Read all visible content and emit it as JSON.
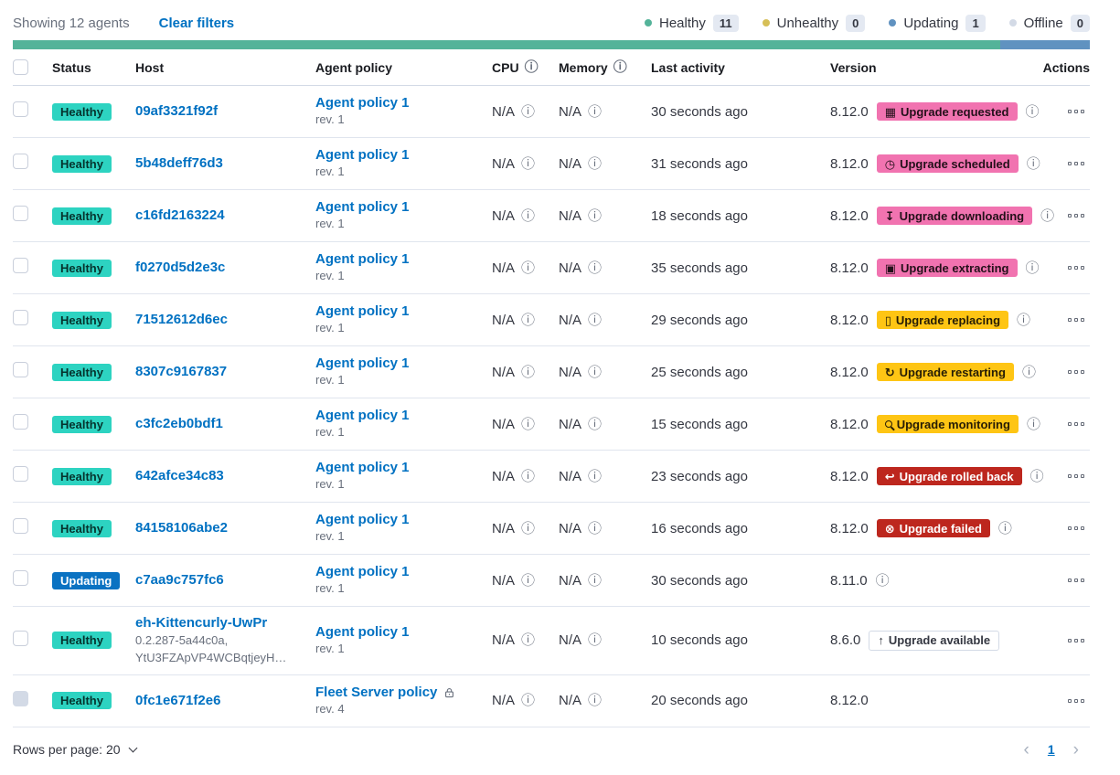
{
  "colors": {
    "healthy_badge": "#2dd3c1",
    "updating_badge": "#0a72c2",
    "accent_badge": "#f173b0",
    "warning_badge": "#fec514",
    "danger_badge": "#bd271e",
    "bar_green": "#54b399",
    "bar_blue": "#6092c0",
    "link": "#0071c2"
  },
  "toolbar": {
    "showing": "Showing 12 agents",
    "clear_filters": "Clear filters"
  },
  "legend": {
    "items": [
      {
        "label": "Healthy",
        "count": "11",
        "color": "#54b399"
      },
      {
        "label": "Unhealthy",
        "count": "0",
        "color": "#d6bf57"
      },
      {
        "label": "Updating",
        "count": "1",
        "color": "#6092c0"
      },
      {
        "label": "Offline",
        "count": "0",
        "color": "#d3dae6"
      }
    ]
  },
  "health_bar": {
    "segments": [
      {
        "color": "#54b399",
        "weight": 11
      },
      {
        "color": "#6092c0",
        "weight": 1
      }
    ]
  },
  "table": {
    "headers": {
      "status": "Status",
      "host": "Host",
      "policy": "Agent policy",
      "cpu": "CPU",
      "memory": "Memory",
      "last_activity": "Last activity",
      "version": "Version",
      "actions": "Actions"
    },
    "rows": [
      {
        "status": "Healthy",
        "status_type": "healthy",
        "host": "09af3321f92f",
        "host_sub": [],
        "policy": "Agent policy 1",
        "policy_rev": "rev. 1",
        "policy_locked": false,
        "cpu": "N/A",
        "memory": "N/A",
        "last_activity": "30 seconds ago",
        "version": "8.12.0",
        "upgrade": {
          "label": "Upgrade requested",
          "icon": "calendar",
          "type": "accent"
        },
        "version_info": true,
        "checkbox_disabled": false
      },
      {
        "status": "Healthy",
        "status_type": "healthy",
        "host": "5b48deff76d3",
        "host_sub": [],
        "policy": "Agent policy 1",
        "policy_rev": "rev. 1",
        "policy_locked": false,
        "cpu": "N/A",
        "memory": "N/A",
        "last_activity": "31 seconds ago",
        "version": "8.12.0",
        "upgrade": {
          "label": "Upgrade scheduled",
          "icon": "clock",
          "type": "accent"
        },
        "version_info": true,
        "checkbox_disabled": false
      },
      {
        "status": "Healthy",
        "status_type": "healthy",
        "host": "c16fd2163224",
        "host_sub": [],
        "policy": "Agent policy 1",
        "policy_rev": "rev. 1",
        "policy_locked": false,
        "cpu": "N/A",
        "memory": "N/A",
        "last_activity": "18 seconds ago",
        "version": "8.12.0",
        "upgrade": {
          "label": "Upgrade downloading",
          "icon": "download",
          "type": "accent"
        },
        "version_info": true,
        "checkbox_disabled": false
      },
      {
        "status": "Healthy",
        "status_type": "healthy",
        "host": "f0270d5d2e3c",
        "host_sub": [],
        "policy": "Agent policy 1",
        "policy_rev": "rev. 1",
        "policy_locked": false,
        "cpu": "N/A",
        "memory": "N/A",
        "last_activity": "35 seconds ago",
        "version": "8.12.0",
        "upgrade": {
          "label": "Upgrade extracting",
          "icon": "package",
          "type": "accent"
        },
        "version_info": true,
        "checkbox_disabled": false
      },
      {
        "status": "Healthy",
        "status_type": "healthy",
        "host": "71512612d6ec",
        "host_sub": [],
        "policy": "Agent policy 1",
        "policy_rev": "rev. 1",
        "policy_locked": false,
        "cpu": "N/A",
        "memory": "N/A",
        "last_activity": "29 seconds ago",
        "version": "8.12.0",
        "upgrade": {
          "label": "Upgrade replacing",
          "icon": "document",
          "type": "warning"
        },
        "version_info": true,
        "checkbox_disabled": false
      },
      {
        "status": "Healthy",
        "status_type": "healthy",
        "host": "8307c9167837",
        "host_sub": [],
        "policy": "Agent policy 1",
        "policy_rev": "rev. 1",
        "policy_locked": false,
        "cpu": "N/A",
        "memory": "N/A",
        "last_activity": "25 seconds ago",
        "version": "8.12.0",
        "upgrade": {
          "label": "Upgrade restarting",
          "icon": "refresh",
          "type": "warning"
        },
        "version_info": true,
        "checkbox_disabled": false
      },
      {
        "status": "Healthy",
        "status_type": "healthy",
        "host": "c3fc2eb0bdf1",
        "host_sub": [],
        "policy": "Agent policy 1",
        "policy_rev": "rev. 1",
        "policy_locked": false,
        "cpu": "N/A",
        "memory": "N/A",
        "last_activity": "15 seconds ago",
        "version": "8.12.0",
        "upgrade": {
          "label": "Upgrade monitoring",
          "icon": "inspect",
          "type": "warning"
        },
        "version_info": true,
        "checkbox_disabled": false
      },
      {
        "status": "Healthy",
        "status_type": "healthy",
        "host": "642afce34c83",
        "host_sub": [],
        "policy": "Agent policy 1",
        "policy_rev": "rev. 1",
        "policy_locked": false,
        "cpu": "N/A",
        "memory": "N/A",
        "last_activity": "23 seconds ago",
        "version": "8.12.0",
        "upgrade": {
          "label": "Upgrade rolled back",
          "icon": "return",
          "type": "danger"
        },
        "version_info": true,
        "checkbox_disabled": false
      },
      {
        "status": "Healthy",
        "status_type": "healthy",
        "host": "84158106abe2",
        "host_sub": [],
        "policy": "Agent policy 1",
        "policy_rev": "rev. 1",
        "policy_locked": false,
        "cpu": "N/A",
        "memory": "N/A",
        "last_activity": "16 seconds ago",
        "version": "8.12.0",
        "upgrade": {
          "label": "Upgrade failed",
          "icon": "error",
          "type": "danger"
        },
        "version_info": true,
        "checkbox_disabled": false
      },
      {
        "status": "Updating",
        "status_type": "updating",
        "host": "c7aa9c757fc6",
        "host_sub": [],
        "policy": "Agent policy 1",
        "policy_rev": "rev. 1",
        "policy_locked": false,
        "cpu": "N/A",
        "memory": "N/A",
        "last_activity": "30 seconds ago",
        "version": "8.11.0",
        "upgrade": null,
        "version_info": true,
        "checkbox_disabled": false
      },
      {
        "status": "Healthy",
        "status_type": "healthy",
        "host": "eh-Kittencurly-UwPr",
        "host_sub": [
          "0.2.287-5a44c0a,",
          "YtU3FZApVP4WCBqtjeyH…"
        ],
        "policy": "Agent policy 1",
        "policy_rev": "rev. 1",
        "policy_locked": false,
        "cpu": "N/A",
        "memory": "N/A",
        "last_activity": "10 seconds ago",
        "version": "8.6.0",
        "upgrade": {
          "label": "Upgrade available",
          "icon": "arrow-up",
          "type": "hollow"
        },
        "version_info": false,
        "checkbox_disabled": false
      },
      {
        "status": "Healthy",
        "status_type": "healthy",
        "host": "0fc1e671f2e6",
        "host_sub": [],
        "policy": "Fleet Server policy",
        "policy_rev": "rev. 4",
        "policy_locked": true,
        "cpu": "N/A",
        "memory": "N/A",
        "last_activity": "20 seconds ago",
        "version": "8.12.0",
        "upgrade": null,
        "version_info": false,
        "checkbox_disabled": true
      }
    ]
  },
  "footer": {
    "rows_per_page": "Rows per page: 20",
    "page": "1",
    "prev": "‹",
    "next": "›"
  }
}
